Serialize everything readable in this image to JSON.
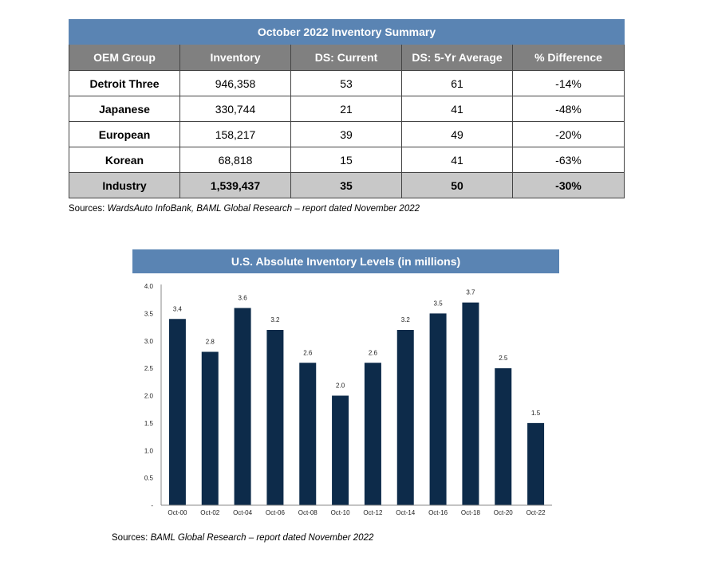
{
  "table": {
    "title": "October 2022 Inventory Summary",
    "headers": [
      "OEM Group",
      "Inventory",
      "DS: Current",
      "DS: 5-Yr Average",
      "% Difference"
    ],
    "rows": [
      {
        "group": "Detroit Three",
        "inventory": "946,358",
        "ds_current": "53",
        "ds_avg": "61",
        "pct_diff": "-14%"
      },
      {
        "group": "Japanese",
        "inventory": "330,744",
        "ds_current": "21",
        "ds_avg": "41",
        "pct_diff": "-48%"
      },
      {
        "group": "European",
        "inventory": "158,217",
        "ds_current": "39",
        "ds_avg": "49",
        "pct_diff": "-20%"
      },
      {
        "group": "Korean",
        "inventory": "68,818",
        "ds_current": "15",
        "ds_avg": "41",
        "pct_diff": "-63%"
      }
    ],
    "total": {
      "group": "Industry",
      "inventory": "1,539,437",
      "ds_current": "35",
      "ds_avg": "50",
      "pct_diff": "-30%"
    },
    "source_label": "Sources: ",
    "source_text": "WardsAuto InfoBank, BAML Global Research – report dated November 2022"
  },
  "chart_data": {
    "type": "bar",
    "title": "U.S. Absolute Inventory Levels (in millions)",
    "categories": [
      "Oct-00",
      "Oct-02",
      "Oct-04",
      "Oct-06",
      "Oct-08",
      "Oct-10",
      "Oct-12",
      "Oct-14",
      "Oct-16",
      "Oct-18",
      "Oct-20",
      "Oct-22"
    ],
    "values": [
      3.4,
      2.8,
      3.6,
      3.2,
      2.6,
      2.0,
      2.6,
      3.2,
      3.5,
      3.7,
      2.5,
      1.5
    ],
    "data_labels": [
      "3.4",
      "2.8",
      "3.6",
      "3.2",
      "2.6",
      "2.0",
      "2.6",
      "3.2",
      "3.5",
      "3.7",
      "2.5",
      "1.5"
    ],
    "y_ticks": [
      "-",
      "0.5",
      "1.0",
      "1.5",
      "2.0",
      "2.5",
      "3.0",
      "3.5",
      "4.0"
    ],
    "ylim": [
      0,
      4.0
    ],
    "xlabel": "",
    "ylabel": "",
    "bar_color": "#0d2b4a",
    "grid": false
  },
  "chart_source": {
    "label": "Sources: ",
    "text": "BAML Global Research – report dated November 2022"
  }
}
